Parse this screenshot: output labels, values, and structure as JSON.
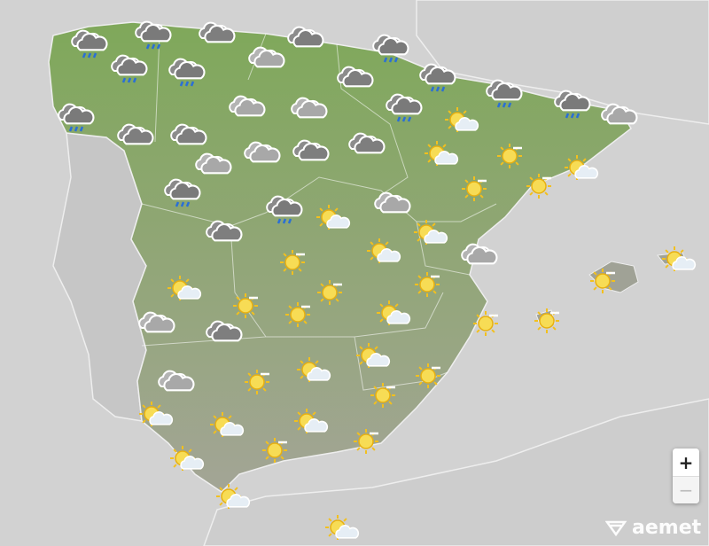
{
  "map": {
    "colors": {
      "sea": "#d2d2d2",
      "land_foreign": "#c8c8c8",
      "spain": "#8aa663",
      "spain_south": "#9aa08a",
      "borders": "#ffffff"
    },
    "forecast_icons": [
      "rain",
      "rain",
      "cloud",
      "cloud",
      "rain",
      "cloud-light",
      "rain",
      "rain",
      "cloud",
      "rain",
      "rain",
      "cloud",
      "cloud",
      "cloud-light",
      "cloud-light",
      "rain",
      "rain",
      "rain",
      "cloud-light",
      "sun-cloud",
      "cloud-light",
      "cloud-light",
      "cloud",
      "cloud",
      "sun-cloud",
      "sun",
      "sun-cloud",
      "rain",
      "rain",
      "sun-cloud",
      "cloud-light",
      "sun",
      "sun",
      "cloud",
      "sun-cloud",
      "sun-cloud",
      "sun",
      "cloud-light",
      "sun-cloud",
      "sun",
      "sun-cloud",
      "sun",
      "sun",
      "sun",
      "sun",
      "sun-cloud",
      "sun",
      "sun",
      "cloud-light",
      "cloud",
      "sun-cloud",
      "sun-cloud",
      "sun",
      "sun",
      "cloud-light",
      "sun",
      "sun-cloud",
      "sun-cloud",
      "sun-cloud",
      "sun",
      "sun",
      "sun-cloud",
      "sun-cloud",
      "sun-cloud"
    ]
  },
  "controls": {
    "zoom_in": "+",
    "zoom_out": "−"
  },
  "logo": {
    "text": "aemet"
  }
}
